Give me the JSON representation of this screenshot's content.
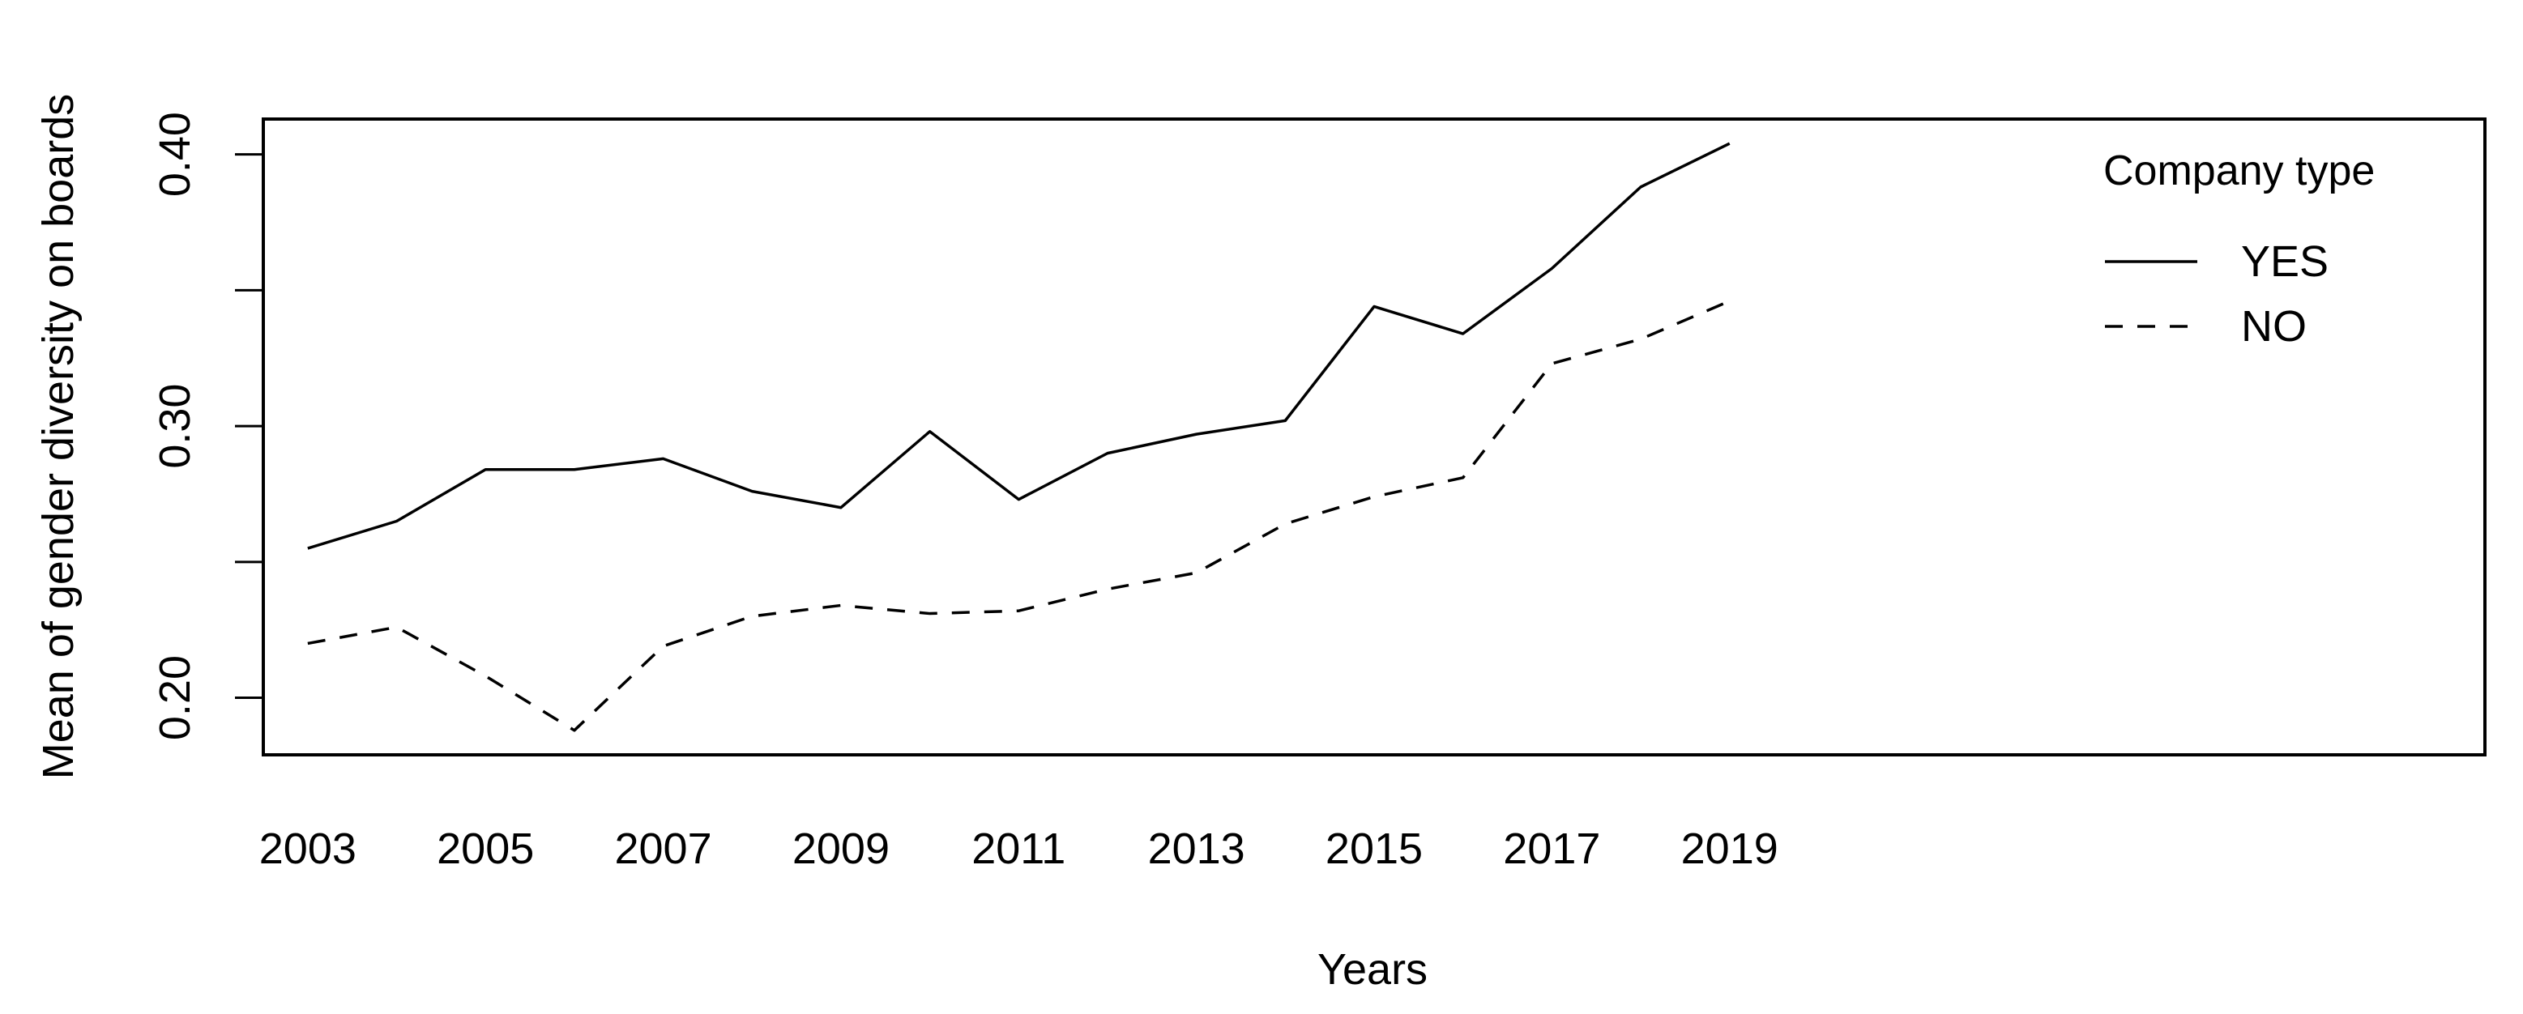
{
  "chart_data": {
    "type": "line",
    "title": "",
    "xlabel": "Years",
    "ylabel": "Mean of gender diversity on boards",
    "x": [
      2003,
      2004,
      2005,
      2006,
      2007,
      2008,
      2009,
      2010,
      2011,
      2012,
      2013,
      2014,
      2015,
      2016,
      2017,
      2018,
      2019
    ],
    "x_tick_labels": [
      "2003",
      "2005",
      "2007",
      "2009",
      "2011",
      "2013",
      "2015",
      "2017",
      "2019"
    ],
    "y_tick_labels": [
      "0.20",
      "0.30",
      "0.40"
    ],
    "y_ticks": [
      0.2,
      0.25,
      0.3,
      0.35,
      0.4
    ],
    "xlim": [
      2002.5,
      2027.5
    ],
    "ylim": [
      0.179,
      0.413
    ],
    "grid": false,
    "legend": {
      "title": "Company type",
      "placement": "top-right"
    },
    "series": [
      {
        "name": "YES",
        "line_style": "solid",
        "values": [
          0.255,
          0.265,
          0.284,
          0.284,
          0.288,
          0.276,
          0.27,
          0.298,
          0.273,
          0.29,
          0.297,
          0.302,
          0.344,
          0.334,
          0.358,
          0.388,
          0.404
        ]
      },
      {
        "name": "NO",
        "line_style": "dashed",
        "values": [
          0.22,
          0.226,
          0.208,
          0.188,
          0.219,
          0.23,
          0.234,
          0.231,
          0.232,
          0.24,
          0.246,
          0.264,
          0.274,
          0.281,
          0.323,
          0.332,
          0.346
        ]
      }
    ],
    "colors": {
      "line": "#000000",
      "frame": "#000000",
      "background": "#ffffff"
    }
  }
}
